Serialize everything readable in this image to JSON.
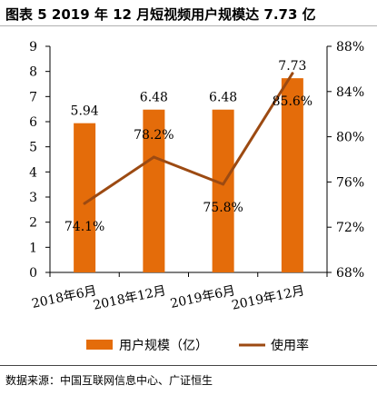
{
  "title": "图表 5 2019 年 12 月短视频用户规模达 7.73 亿",
  "source": "数据来源：中国互联网信息中心、广证恒生",
  "colors": {
    "bar": "#E46C0A",
    "line": "#9C4A12"
  },
  "chart_data": {
    "type": "bar",
    "categories": [
      "2018年6月",
      "2018年12月",
      "2019年6月",
      "2019年12月"
    ],
    "series": [
      {
        "name": "用户规模（亿）",
        "type": "bar",
        "axis": "left",
        "values": [
          5.94,
          6.48,
          6.48,
          7.73
        ],
        "labels": [
          "5.94",
          "6.48",
          "6.48",
          "7.73"
        ]
      },
      {
        "name": "使用率",
        "type": "line",
        "axis": "right",
        "values": [
          74.1,
          78.2,
          75.8,
          85.6
        ],
        "labels": [
          "74.1%",
          "78.2%",
          "75.8%",
          "85.6%"
        ]
      }
    ],
    "y_left": {
      "min": 0,
      "max": 9,
      "ticks": [
        "0",
        "1",
        "2",
        "3",
        "4",
        "5",
        "6",
        "7",
        "8",
        "9"
      ]
    },
    "y_right": {
      "min": 68,
      "max": 88,
      "ticks": [
        "68%",
        "72%",
        "76%",
        "80%",
        "84%",
        "88%"
      ]
    },
    "legend_position": "bottom",
    "grid": false
  }
}
